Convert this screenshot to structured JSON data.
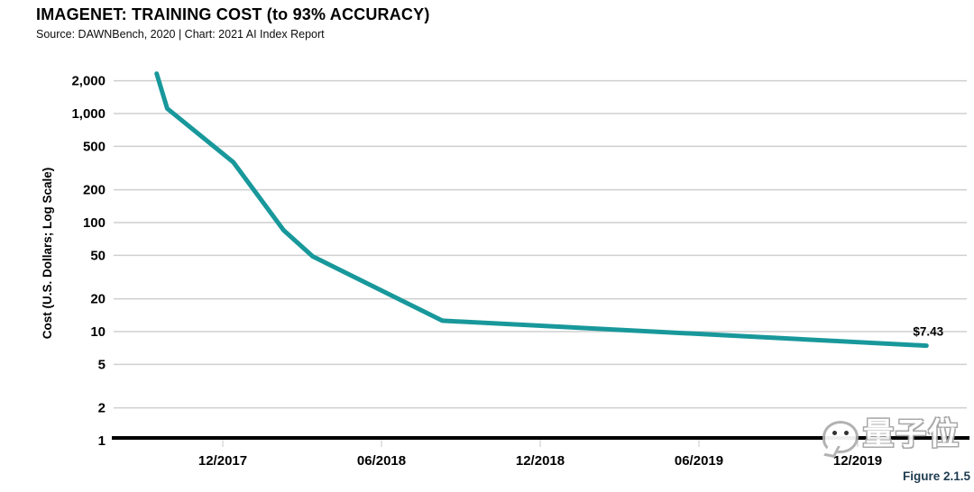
{
  "header": {
    "title": "IMAGENET: TRAINING COST (to 93% ACCURACY)",
    "source_line": "Source: DAWNBench, 2020 | Chart: 2021 AI Index Report"
  },
  "figure_label": "Figure 2.1.5",
  "watermark": {
    "icon": "qbitai-speech-bubble-face",
    "text": "量子位"
  },
  "colors": {
    "line": "#18989B",
    "grid": "#CFCFCF",
    "tick_mark": "#DADADA",
    "axis": "#000000",
    "text": "#000000",
    "figure_label": "#1E3C50",
    "background": "#FFFFFF"
  },
  "chart_data": {
    "type": "line",
    "title": "IMAGENET: TRAINING COST (to 93% ACCURACY)",
    "xlabel": "",
    "ylabel": "Cost (U.S. Dollars; Log Scale)",
    "y_scale": "log",
    "ylim": [
      1,
      2600
    ],
    "grid": true,
    "legend": false,
    "y_ticks": [
      {
        "value": 2000,
        "label": "2,000"
      },
      {
        "value": 1000,
        "label": "1,000"
      },
      {
        "value": 500,
        "label": "500"
      },
      {
        "value": 200,
        "label": "200"
      },
      {
        "value": 100,
        "label": "100"
      },
      {
        "value": 50,
        "label": "50"
      },
      {
        "value": 20,
        "label": "20"
      },
      {
        "value": 10,
        "label": "10"
      },
      {
        "value": 5,
        "label": "5"
      },
      {
        "value": 2,
        "label": "2"
      },
      {
        "value": 1,
        "label": "1"
      }
    ],
    "x_ticks": [
      {
        "label": "12/2017",
        "month_offset": 0
      },
      {
        "label": "06/2018",
        "month_offset": 6
      },
      {
        "label": "12/2018",
        "month_offset": 12
      },
      {
        "label": "06/2019",
        "month_offset": 18
      },
      {
        "label": "12/2019",
        "month_offset": 24
      }
    ],
    "series": [
      {
        "name": "ImageNet training cost (USD)",
        "points": [
          {
            "date": "Oct 2017",
            "month_offset": -2.5,
            "value": 2323
          },
          {
            "date": "Nov 2017",
            "month_offset": -2.1,
            "value": 1112
          },
          {
            "date": "Dec 2017",
            "month_offset": 0.4,
            "value": 358
          },
          {
            "date": "Feb 2018",
            "month_offset": 2.3,
            "value": 85
          },
          {
            "date": "Mar 2018",
            "month_offset": 3.4,
            "value": 49
          },
          {
            "date": "Aug 2018",
            "month_offset": 8.3,
            "value": 12.6
          },
          {
            "date": "Feb 2020",
            "month_offset": 26.6,
            "value": 7.43,
            "label": "$7.43"
          }
        ]
      }
    ]
  }
}
